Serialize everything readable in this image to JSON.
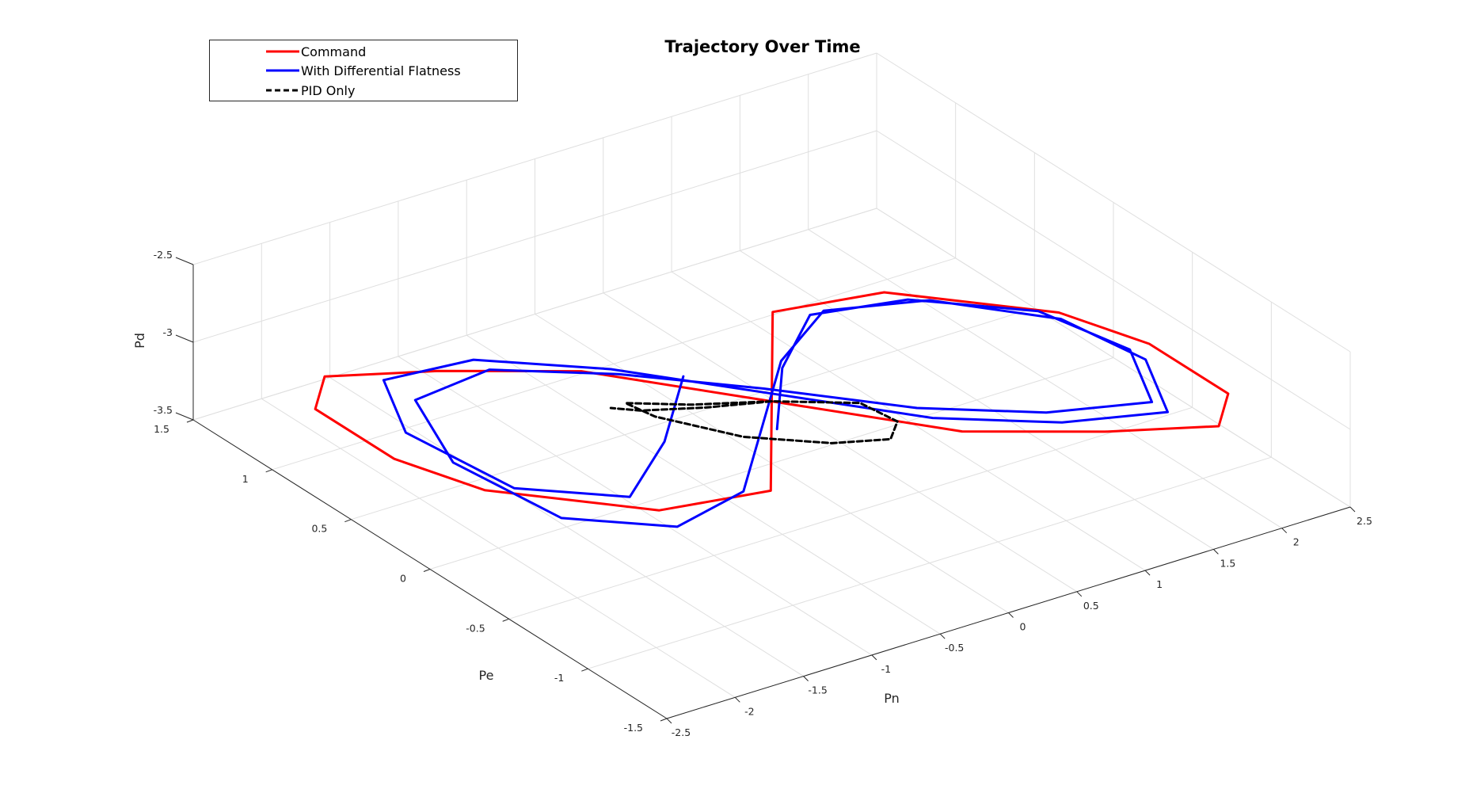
{
  "chart_data": {
    "type": "line",
    "title": "Trajectory Over Time",
    "xlabel": "Pn",
    "ylabel": "Pe",
    "zlabel": "Pd",
    "xlim": [
      -2.5,
      2.5
    ],
    "ylim": [
      -1.5,
      1.5
    ],
    "zlim": [
      -3.5,
      -2.5
    ],
    "xticks": [
      "-2.5",
      "-2",
      "-1.5",
      "-1",
      "-0.5",
      "0",
      "0.5",
      "1",
      "1.5",
      "2",
      "2.5"
    ],
    "yticks": [
      "-1.5",
      "-1",
      "-0.5",
      "0",
      "0.5",
      "1",
      "1.5"
    ],
    "zticks": [
      "-3.5",
      "-3",
      "-2.5"
    ],
    "grid": true,
    "legend_position": "top-left",
    "series": [
      {
        "name": "Command",
        "color": "#ff0000",
        "style": "solid",
        "points": [
          [
            -2.1,
            0.0,
            -3.1
          ],
          [
            -2.3,
            0.4,
            -3.1
          ],
          [
            -2.3,
            0.9,
            -3.1
          ],
          [
            -2.0,
            1.1,
            -3.1
          ],
          [
            -1.4,
            0.9,
            -3.1
          ],
          [
            -0.7,
            0.6,
            -3.1
          ],
          [
            0.0,
            0.0,
            -3.1
          ],
          [
            0.7,
            -0.6,
            -3.1
          ],
          [
            1.4,
            -0.9,
            -3.1
          ],
          [
            2.0,
            -1.1,
            -3.1
          ],
          [
            2.3,
            -0.9,
            -3.1
          ],
          [
            2.3,
            -0.4,
            -3.1
          ],
          [
            2.1,
            0.0,
            -3.1
          ],
          [
            1.4,
            0.5,
            -3.1
          ],
          [
            0.7,
            0.6,
            -3.1
          ],
          [
            0.0,
            0.0,
            -3.1
          ],
          [
            -0.7,
            -0.6,
            -3.1
          ],
          [
            -1.4,
            -0.5,
            -3.1
          ],
          [
            -2.1,
            0.0,
            -3.1
          ]
        ]
      },
      {
        "name": "With Differential Flatness",
        "color": "#0000ff",
        "style": "solid",
        "points": [
          [
            -0.3,
            0.3,
            -3.05
          ],
          [
            -0.9,
            -0.1,
            -3.05
          ],
          [
            -1.5,
            -0.4,
            -3.05
          ],
          [
            -2.0,
            -0.1,
            -3.05
          ],
          [
            -2.1,
            0.5,
            -3.05
          ],
          [
            -1.8,
            0.9,
            -3.05
          ],
          [
            -1.2,
            0.85,
            -3.05
          ],
          [
            -0.6,
            0.5,
            -3.05
          ],
          [
            0.0,
            0.0,
            -3.05
          ],
          [
            0.6,
            -0.5,
            -3.05
          ],
          [
            1.2,
            -0.8,
            -3.05
          ],
          [
            1.8,
            -0.95,
            -3.05
          ],
          [
            2.1,
            -0.55,
            -3.05
          ],
          [
            2.0,
            -0.1,
            -3.05
          ],
          [
            1.5,
            0.3,
            -3.05
          ],
          [
            0.9,
            0.45,
            -3.05
          ],
          [
            0.3,
            0.2,
            -3.05
          ],
          [
            -0.3,
            -0.2,
            -3.05
          ],
          [
            -0.9,
            -0.6,
            -3.05
          ],
          [
            -1.5,
            -0.7,
            -3.05
          ],
          [
            -2.0,
            -0.4,
            -3.05
          ],
          [
            -2.1,
            0.2,
            -3.05
          ],
          [
            -1.8,
            0.7,
            -3.05
          ],
          [
            -1.2,
            0.75,
            -3.05
          ],
          [
            -0.6,
            0.45,
            -3.05
          ],
          [
            0.0,
            0.05,
            -3.05
          ],
          [
            0.6,
            -0.4,
            -3.05
          ],
          [
            1.2,
            -0.7,
            -3.05
          ],
          [
            1.8,
            -0.85,
            -3.05
          ],
          [
            2.1,
            -0.45,
            -3.05
          ],
          [
            1.95,
            0.0,
            -3.05
          ],
          [
            1.4,
            0.35,
            -3.05
          ],
          [
            0.8,
            0.45,
            -3.05
          ],
          [
            0.25,
            0.15,
            -3.05
          ],
          [
            -0.25,
            -0.25,
            -3.05
          ]
        ]
      },
      {
        "name": "PID Only",
        "color": "#000000",
        "style": "dashed",
        "points": [
          [
            0.0,
            0.0,
            -3.1
          ],
          [
            -0.3,
            0.25,
            -3.2
          ],
          [
            -0.55,
            0.45,
            -3.25
          ],
          [
            -0.45,
            0.35,
            -3.3
          ],
          [
            -0.15,
            0.05,
            -3.32
          ],
          [
            0.15,
            -0.25,
            -3.25
          ],
          [
            0.35,
            -0.45,
            -3.15
          ],
          [
            0.4,
            -0.45,
            -3.05
          ],
          [
            0.3,
            -0.3,
            -3.0
          ],
          [
            0.15,
            -0.15,
            -3.05
          ],
          [
            0.0,
            0.0,
            -3.1
          ],
          [
            -0.25,
            0.2,
            -3.2
          ],
          [
            -0.5,
            0.4,
            -3.28
          ],
          [
            -0.6,
            0.5,
            -3.3
          ]
        ]
      }
    ]
  }
}
